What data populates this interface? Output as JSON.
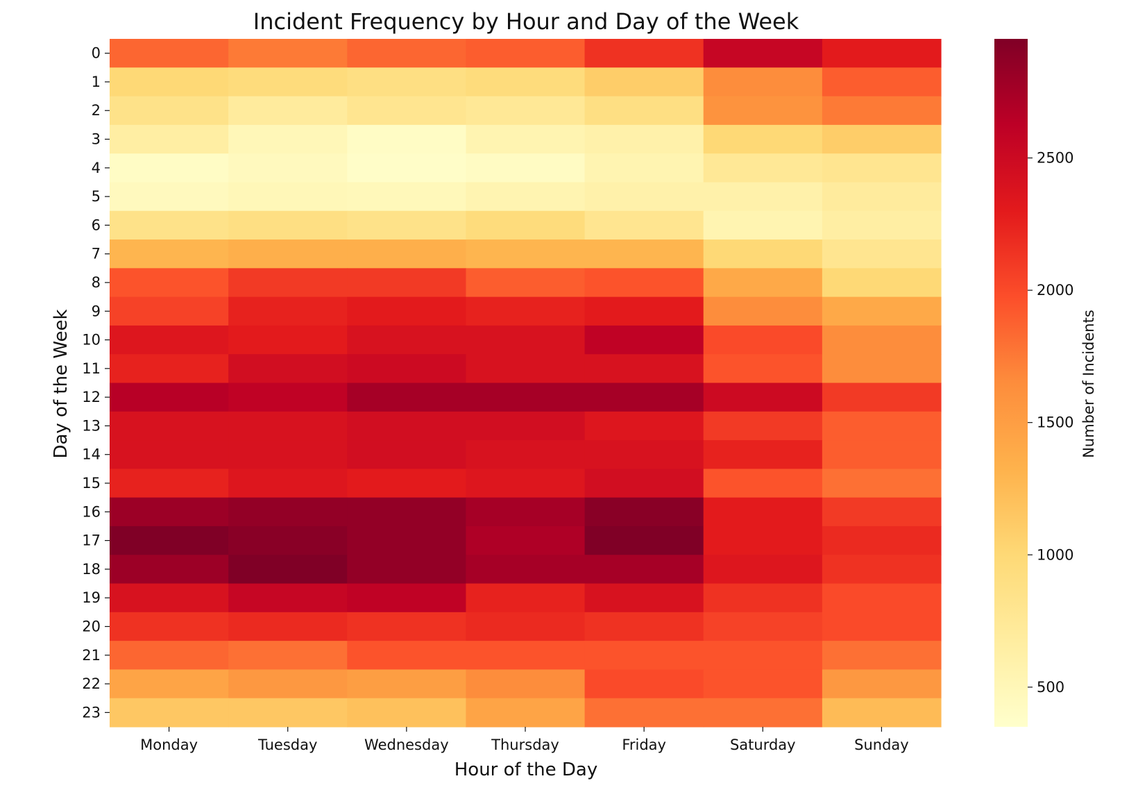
{
  "chart_data": {
    "type": "heatmap",
    "title": "Incident Frequency by Hour and Day of the Week",
    "xlabel": "Hour of the Day",
    "ylabel": "Day of the Week",
    "x_categories": [
      "Monday",
      "Tuesday",
      "Wednesday",
      "Thursday",
      "Friday",
      "Saturday",
      "Sunday"
    ],
    "y_categories": [
      "0",
      "1",
      "2",
      "3",
      "4",
      "5",
      "6",
      "7",
      "8",
      "9",
      "10",
      "11",
      "12",
      "13",
      "14",
      "15",
      "16",
      "17",
      "18",
      "19",
      "20",
      "21",
      "22",
      "23"
    ],
    "values": [
      [
        1850,
        1750,
        1850,
        1900,
        2150,
        2550,
        2300
      ],
      [
        1000,
        950,
        900,
        950,
        1100,
        1650,
        1900
      ],
      [
        850,
        700,
        800,
        750,
        900,
        1600,
        1750
      ],
      [
        650,
        500,
        400,
        550,
        600,
        1000,
        1100
      ],
      [
        400,
        450,
        380,
        420,
        550,
        750,
        800
      ],
      [
        450,
        500,
        480,
        550,
        600,
        600,
        700
      ],
      [
        850,
        900,
        850,
        950,
        800,
        550,
        650
      ],
      [
        1300,
        1350,
        1350,
        1300,
        1300,
        1000,
        800
      ],
      [
        1950,
        2100,
        2100,
        1900,
        1950,
        1400,
        1000
      ],
      [
        2050,
        2250,
        2300,
        2250,
        2300,
        1650,
        1400
      ],
      [
        2350,
        2300,
        2400,
        2400,
        2600,
        2000,
        1650
      ],
      [
        2250,
        2450,
        2500,
        2400,
        2400,
        1950,
        1650
      ],
      [
        2650,
        2600,
        2750,
        2750,
        2750,
        2500,
        2100
      ],
      [
        2400,
        2400,
        2450,
        2450,
        2350,
        2100,
        1900
      ],
      [
        2400,
        2400,
        2450,
        2400,
        2400,
        2250,
        1900
      ],
      [
        2250,
        2350,
        2300,
        2350,
        2450,
        1950,
        1800
      ],
      [
        2800,
        2850,
        2850,
        2750,
        2900,
        2300,
        2100
      ],
      [
        2950,
        2900,
        2850,
        2700,
        2950,
        2300,
        2200
      ],
      [
        2800,
        2950,
        2850,
        2750,
        2750,
        2350,
        2150
      ],
      [
        2400,
        2550,
        2600,
        2250,
        2400,
        2150,
        2000
      ],
      [
        2150,
        2200,
        2150,
        2200,
        2150,
        2050,
        2000
      ],
      [
        1850,
        1800,
        1950,
        1950,
        1950,
        1950,
        1800
      ],
      [
        1450,
        1550,
        1500,
        1650,
        2000,
        1950,
        1550
      ],
      [
        1150,
        1150,
        1200,
        1450,
        1800,
        1800,
        1250
      ]
    ],
    "colormap": "YlOrRd",
    "color_scale": [
      350,
      2950
    ],
    "colorbar": {
      "label": "Number of Incidents",
      "ticks": [
        500,
        1000,
        1500,
        2000,
        2500
      ]
    },
    "grid": false,
    "legend": "colorbar-right"
  }
}
